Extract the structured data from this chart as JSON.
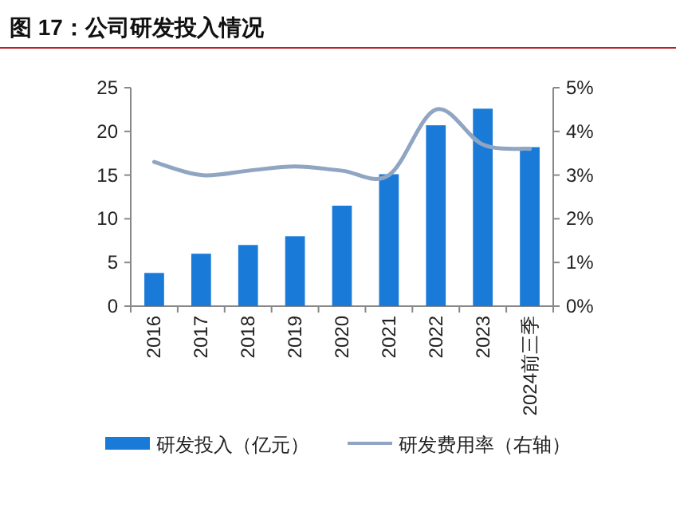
{
  "chart_data": {
    "type": "bar",
    "title": "图 17：公司研发投入情况",
    "categories": [
      "2016",
      "2017",
      "2018",
      "2019",
      "2020",
      "2021",
      "2022",
      "2023",
      "2024前三季"
    ],
    "series": [
      {
        "name": "研发投入（亿元）",
        "color": "#1a7ad8",
        "values": [
          3.8,
          6.0,
          7.0,
          8.0,
          11.5,
          15.1,
          20.7,
          22.6,
          18.2
        ]
      },
      {
        "name": "研发费用率（右轴）",
        "type": "line",
        "axis": "y2",
        "color": "#8fa5c2",
        "values": [
          3.3,
          3.0,
          3.1,
          3.2,
          3.1,
          3.0,
          4.5,
          3.7,
          3.6
        ]
      }
    ],
    "ylim": [
      0,
      25
    ],
    "yticks": [
      0,
      5,
      10,
      15,
      20,
      25
    ],
    "y2lim": [
      0,
      5
    ],
    "y2ticks": [
      {
        "value": 0,
        "label": "0%"
      },
      {
        "value": 1,
        "label": "1%"
      },
      {
        "value": 2,
        "label": "2%"
      },
      {
        "value": 3,
        "label": "3%"
      },
      {
        "value": 4,
        "label": "4%"
      },
      {
        "value": 5,
        "label": "5%"
      }
    ],
    "grid": false,
    "legend": "bottom"
  }
}
